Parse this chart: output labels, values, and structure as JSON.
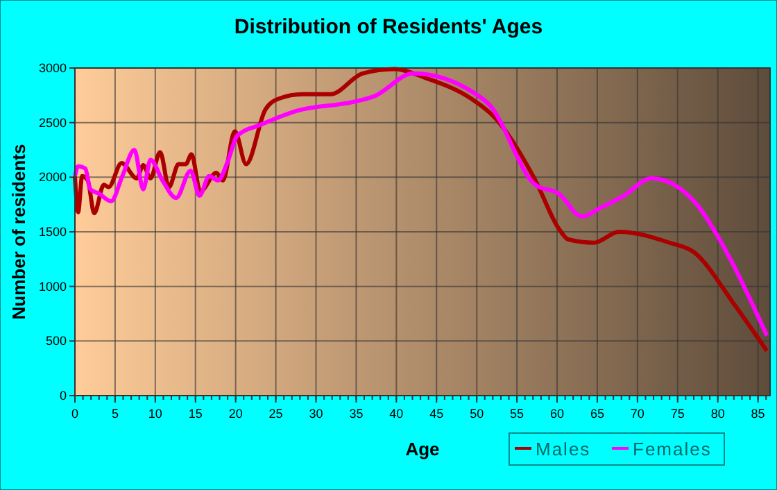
{
  "chart_data": {
    "type": "line",
    "title": "Distribution of Residents' Ages",
    "xlabel": "Age",
    "ylabel": "Number of residents",
    "xlim": [
      0,
      86.5
    ],
    "xticks": [
      0,
      5,
      10,
      15,
      20,
      25,
      30,
      35,
      40,
      45,
      50,
      55,
      60,
      65,
      70,
      75,
      80,
      85
    ],
    "ylim": [
      0,
      3000
    ],
    "yticks": [
      0,
      500,
      1000,
      1500,
      2000,
      2500,
      3000
    ],
    "grid": true,
    "legend": "bottom right",
    "line_style": "solid",
    "marker": "none",
    "series": [
      {
        "name": "Males",
        "color": "#aa0000",
        "x": [
          0,
          0.4,
          0.9,
          1.6,
          2.4,
          3.6,
          4.2,
          5.8,
          7.7,
          8.5,
          9.4,
          10.6,
          11.7,
          12.9,
          13.8,
          14.5,
          15.6,
          17.6,
          18.4,
          19.9,
          21.3,
          23.7,
          25.4,
          28.3,
          31.8,
          35.8,
          39.8,
          43.6,
          49.3,
          52.2,
          57.3,
          60.2,
          61.4,
          64.6,
          67.7,
          74,
          76.9,
          82.1,
          86.1
        ],
        "values": [
          2010,
          1680,
          2010,
          1970,
          1670,
          1930,
          1910,
          2130,
          1990,
          2110,
          1990,
          2230,
          1910,
          2120,
          2120,
          2210,
          1870,
          2040,
          1970,
          2420,
          2120,
          2620,
          2720,
          2760,
          2760,
          2950,
          2990,
          2910,
          2720,
          2550,
          1970,
          1530,
          1430,
          1400,
          1500,
          1400,
          1320,
          830,
          410
        ]
      },
      {
        "name": "Females",
        "color": "#ff00ff",
        "x": [
          0,
          0.4,
          1.3,
          1.9,
          3,
          4.5,
          5.9,
          7.4,
          8.5,
          9.4,
          10.9,
          12.6,
          14.4,
          15.5,
          16.7,
          17.8,
          19,
          20.2,
          23.1,
          27.7,
          34.7,
          37.2,
          42.1,
          49.5,
          51.5,
          57.3,
          60.2,
          63.1,
          65.4,
          68.3,
          71.7,
          74.6,
          77.5,
          80.9,
          86.1
        ],
        "values": [
          2010,
          2100,
          2080,
          1890,
          1850,
          1780,
          2010,
          2250,
          1890,
          2160,
          1970,
          1810,
          2060,
          1830,
          2010,
          1970,
          2140,
          2380,
          2480,
          2610,
          2690,
          2740,
          2950,
          2780,
          2670,
          1930,
          1850,
          1640,
          1720,
          1830,
          1990,
          1930,
          1740,
          1340,
          550
        ]
      }
    ]
  }
}
